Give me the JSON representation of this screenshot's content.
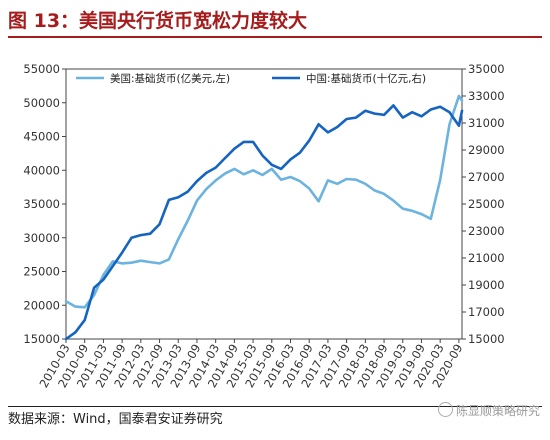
{
  "title": "图 13：美国央行货币宽松力度较大",
  "source": "数据来源：Wind，国泰君安证券研究",
  "watermark": "陈显顺策略研究",
  "colors": {
    "us": "#6cb3e0",
    "cn": "#1565c0",
    "title": "#a61c1c"
  },
  "chart_data": {
    "type": "line",
    "title": "图 13：美国央行货币宽松力度较大",
    "x_start": "2010-03",
    "x_end": "2020-10",
    "x_ticks": [
      "2010-03",
      "2010-09",
      "2011-03",
      "2011-09",
      "2012-03",
      "2012-09",
      "2013-03",
      "2013-09",
      "2014-03",
      "2014-09",
      "2015-03",
      "2015-09",
      "2016-03",
      "2016-09",
      "2017-03",
      "2017-09",
      "2018-03",
      "2018-09",
      "2019-03",
      "2019-09",
      "2020-03",
      "2020-09"
    ],
    "ylim_left": [
      15000,
      55000
    ],
    "yticks_left": [
      15000,
      20000,
      25000,
      30000,
      35000,
      40000,
      45000,
      50000,
      55000
    ],
    "ylim_right": [
      15000,
      35000
    ],
    "yticks_right": [
      15000,
      17000,
      19000,
      21000,
      23000,
      25000,
      27000,
      29000,
      31000,
      33000,
      35000
    ],
    "legend_placement": "top",
    "grid": false,
    "series": [
      {
        "name": "美国:基础货币(亿美元,左)",
        "axis": "left",
        "color": "#6cb3e0",
        "x": [
          "2010-03",
          "2010-06",
          "2010-09",
          "2010-12",
          "2011-03",
          "2011-06",
          "2011-09",
          "2011-12",
          "2012-03",
          "2012-06",
          "2012-09",
          "2012-12",
          "2013-03",
          "2013-06",
          "2013-09",
          "2013-12",
          "2014-03",
          "2014-06",
          "2014-09",
          "2014-12",
          "2015-03",
          "2015-06",
          "2015-09",
          "2015-12",
          "2016-03",
          "2016-06",
          "2016-09",
          "2016-12",
          "2017-03",
          "2017-06",
          "2017-09",
          "2017-12",
          "2018-03",
          "2018-06",
          "2018-09",
          "2018-12",
          "2019-03",
          "2019-06",
          "2019-09",
          "2019-12",
          "2020-03",
          "2020-06",
          "2020-09",
          "2020-10"
        ],
        "values": [
          20600,
          19800,
          19700,
          21500,
          24500,
          26500,
          26200,
          26300,
          26600,
          26400,
          26200,
          26800,
          29800,
          32500,
          35500,
          37200,
          38500,
          39500,
          40200,
          39400,
          40000,
          39300,
          40200,
          38600,
          39000,
          38400,
          37300,
          35400,
          38500,
          38000,
          38700,
          38600,
          38000,
          37000,
          36500,
          35500,
          34300,
          34000,
          33500,
          32800,
          38600,
          46800,
          51000,
          50300
        ]
      },
      {
        "name": "中国:基础货币(十亿元,右)",
        "axis": "right",
        "color": "#1565c0",
        "x": [
          "2010-03",
          "2010-06",
          "2010-09",
          "2010-12",
          "2011-03",
          "2011-06",
          "2011-09",
          "2011-12",
          "2012-03",
          "2012-06",
          "2012-09",
          "2012-12",
          "2013-03",
          "2013-06",
          "2013-09",
          "2013-12",
          "2014-03",
          "2014-06",
          "2014-09",
          "2014-12",
          "2015-03",
          "2015-06",
          "2015-09",
          "2015-12",
          "2016-03",
          "2016-06",
          "2016-09",
          "2016-12",
          "2017-03",
          "2017-06",
          "2017-09",
          "2017-12",
          "2018-03",
          "2018-06",
          "2018-09",
          "2018-12",
          "2019-03",
          "2019-06",
          "2019-09",
          "2019-12",
          "2020-03",
          "2020-06",
          "2020-09",
          "2020-10"
        ],
        "values": [
          15000,
          15500,
          16400,
          18800,
          19400,
          20400,
          21400,
          22500,
          22700,
          22800,
          23500,
          25300,
          25500,
          25900,
          26700,
          27300,
          27700,
          28400,
          29100,
          29600,
          29600,
          28600,
          27900,
          27600,
          28300,
          28800,
          29700,
          30900,
          30300,
          30700,
          31300,
          31400,
          31900,
          31700,
          31600,
          32300,
          31400,
          31800,
          31500,
          32000,
          32200,
          31800,
          30800,
          31900
        ]
      }
    ]
  }
}
